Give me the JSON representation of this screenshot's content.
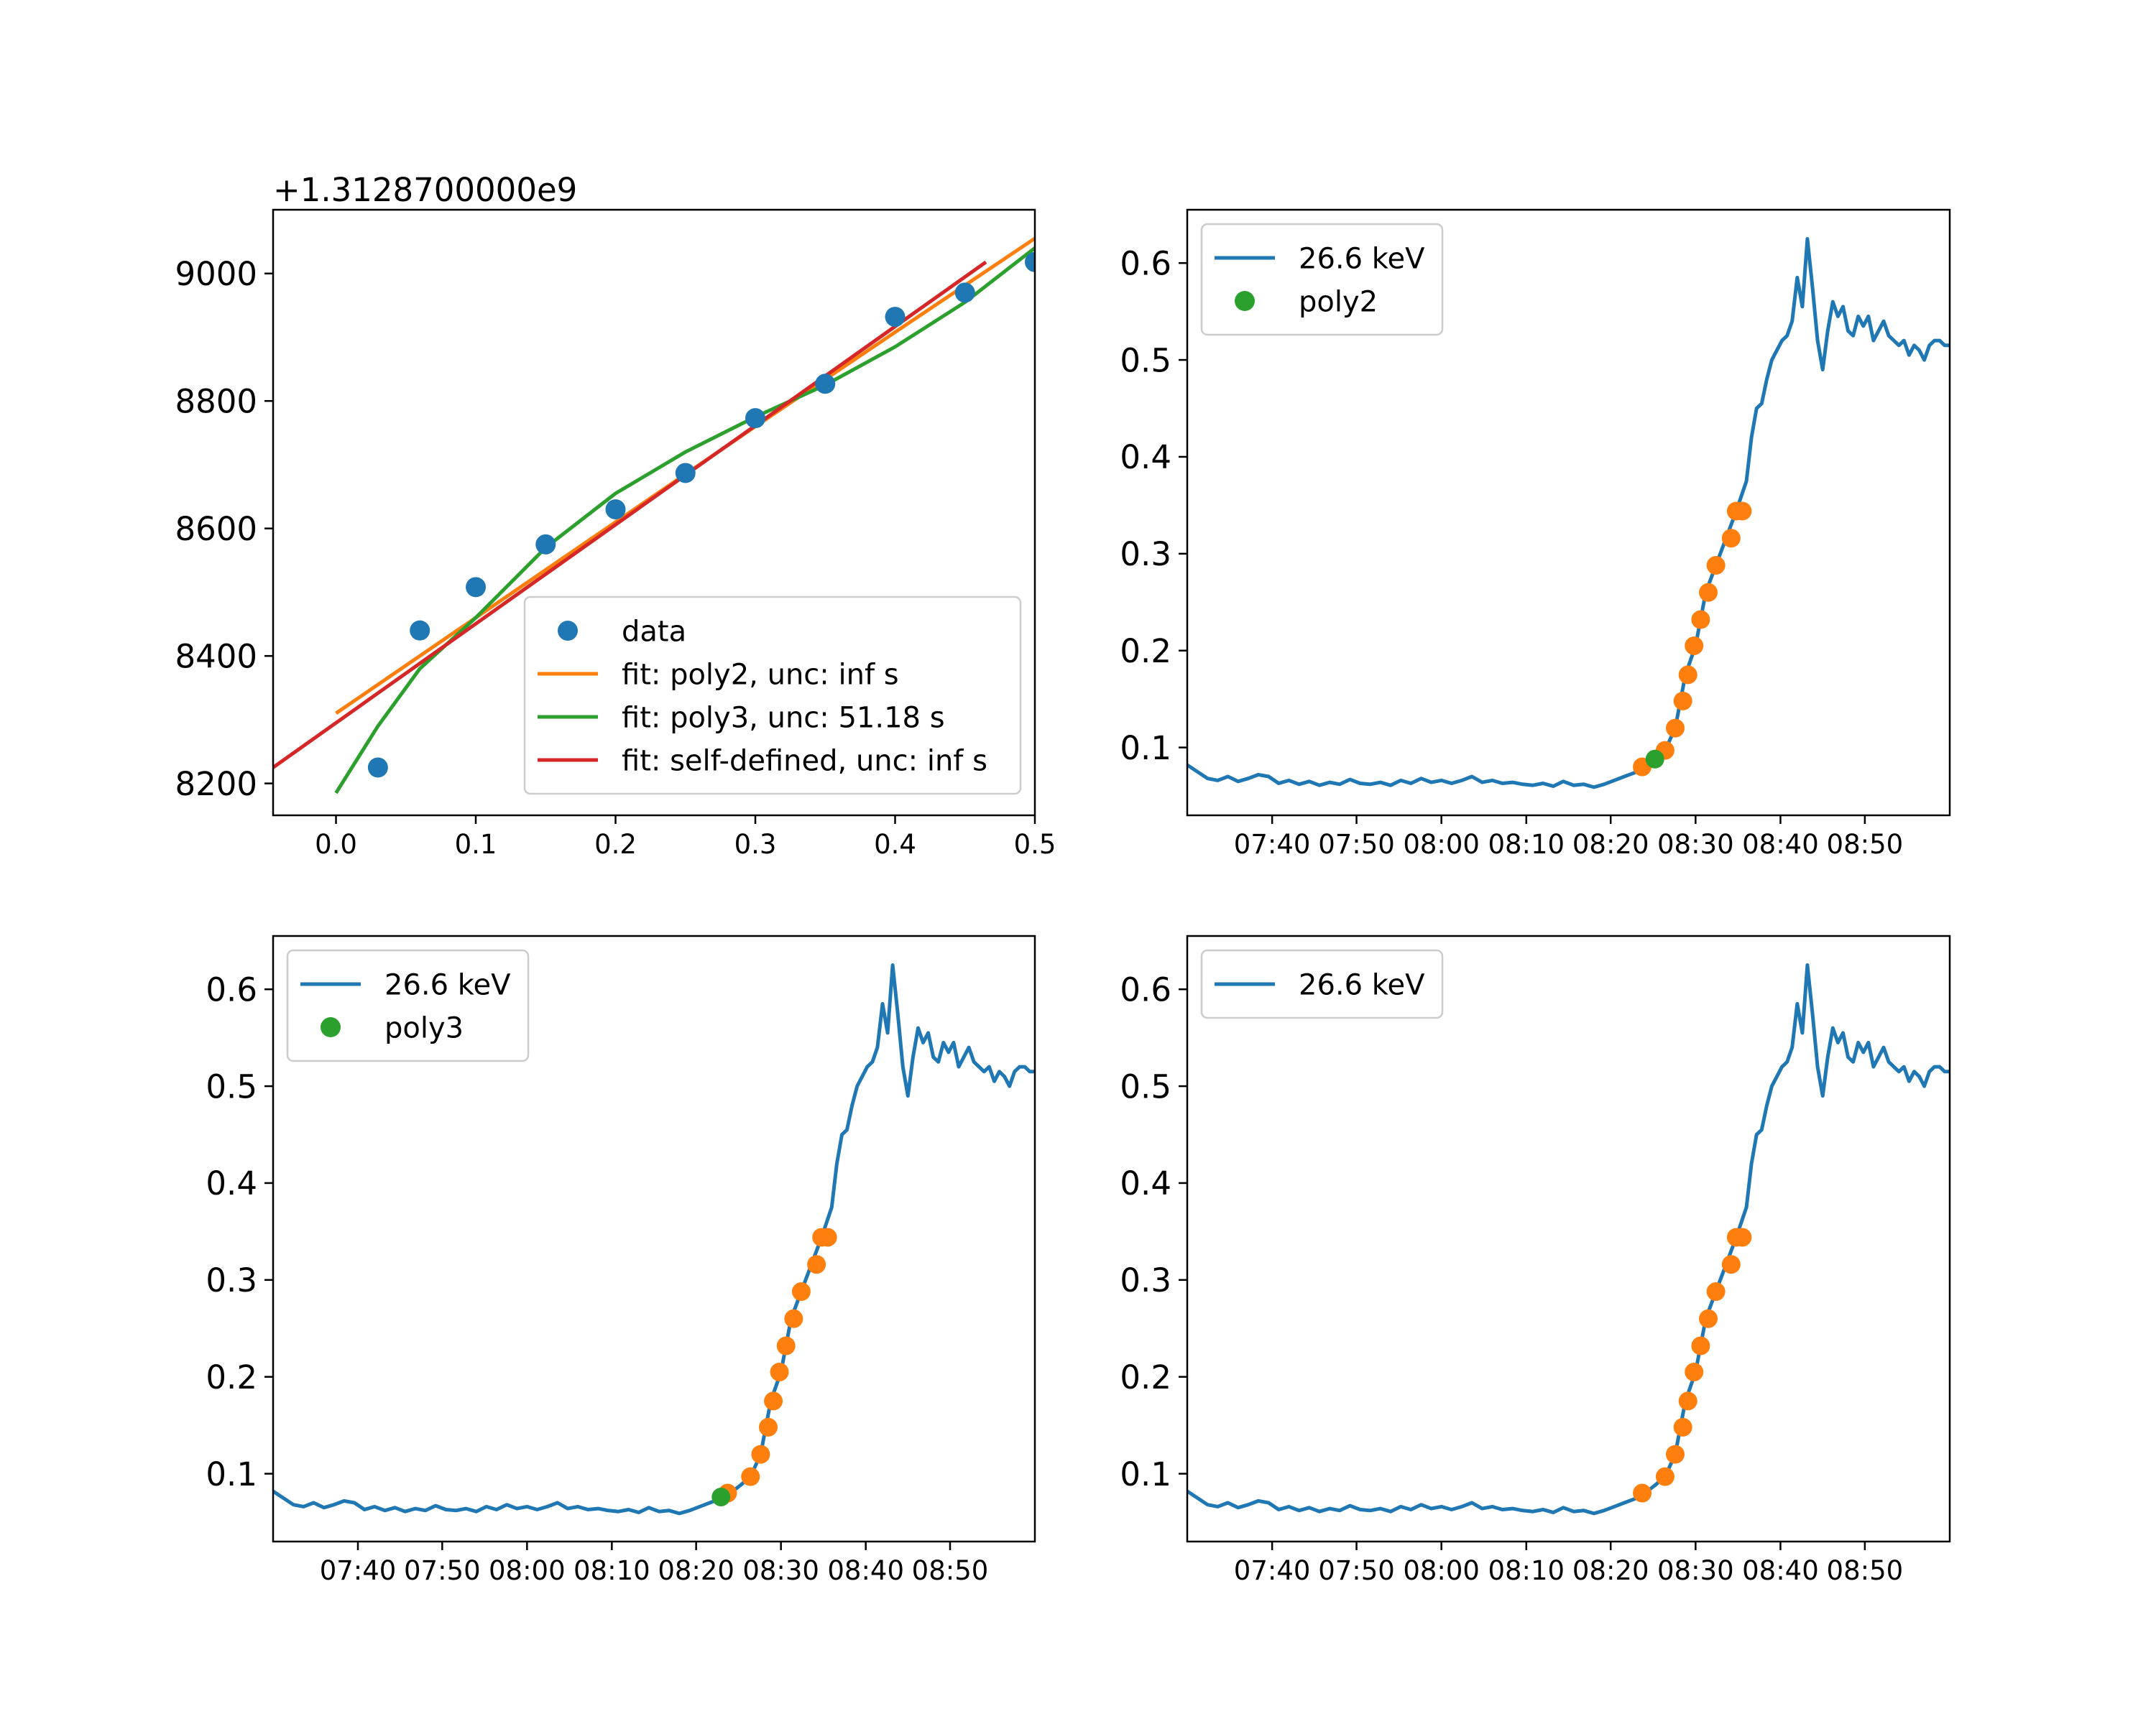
{
  "colors": {
    "blue": "#1f77b4",
    "orange": "#ff7f0e",
    "green": "#2ca02c",
    "red": "#d62728"
  },
  "chart_data": [
    {
      "type": "scatter",
      "offset_label": "+1.3128700000e9",
      "xlim": [
        -0.045,
        0.5
      ],
      "ylim": [
        8150,
        9100
      ],
      "x_ticks": [
        0.0,
        0.1,
        0.2,
        0.3,
        0.4,
        0.5
      ],
      "x_tick_labels": [
        "0.0",
        "0.1",
        "0.2",
        "0.3",
        "0.4",
        "0.5"
      ],
      "y_ticks": [
        8200,
        8400,
        8600,
        8800,
        9000
      ],
      "y_tick_labels": [
        "8200",
        "8400",
        "8600",
        "8800",
        "9000"
      ],
      "legend_position": "lower-right",
      "series": [
        {
          "name": "data",
          "kind": "points",
          "color": "#1f77b4",
          "x": [
            0.03,
            0.06,
            0.1,
            0.15,
            0.2,
            0.25,
            0.3,
            0.35,
            0.4,
            0.45,
            0.5
          ],
          "y": [
            8225,
            8440,
            8508,
            8575,
            8630,
            8687,
            8773,
            8827,
            8932,
            8970,
            9018
          ]
        },
        {
          "name": "fit: poly2, unc: inf s",
          "kind": "line",
          "color": "#ff7f0e",
          "x": [
            0.0,
            0.1,
            0.2,
            0.3,
            0.4,
            0.5
          ],
          "y": [
            8310,
            8460,
            8610,
            8760,
            8908,
            9055
          ]
        },
        {
          "name": "fit: poly3, unc: 51.18 s",
          "kind": "line",
          "color": "#2ca02c",
          "x": [
            0.0,
            0.03,
            0.06,
            0.1,
            0.15,
            0.2,
            0.25,
            0.3,
            0.35,
            0.4,
            0.45,
            0.5
          ],
          "y": [
            8185,
            8290,
            8380,
            8460,
            8570,
            8655,
            8720,
            8775,
            8825,
            8885,
            8955,
            9040
          ]
        },
        {
          "name": "fit: self-defined, unc: inf s",
          "kind": "line",
          "color": "#d62728",
          "x": [
            -0.045,
            0.465
          ],
          "y": [
            8225,
            9018
          ]
        }
      ]
    },
    {
      "type": "line",
      "x_tick_labels": [
        "07:40",
        "07:50",
        "08:00",
        "08:10",
        "08:20",
        "08:30",
        "08:40",
        "08:50"
      ],
      "x_ticks": [
        7.667,
        7.833,
        8.0,
        8.167,
        8.333,
        8.5,
        8.667,
        8.833
      ],
      "xlim": [
        7.5,
        9.0
      ],
      "ylim": [
        0.03,
        0.655
      ],
      "y_ticks": [
        0.1,
        0.2,
        0.3,
        0.4,
        0.5,
        0.6
      ],
      "y_tick_labels": [
        "0.1",
        "0.2",
        "0.3",
        "0.4",
        "0.5",
        "0.6"
      ],
      "legend_position": "top-left",
      "legend": [
        {
          "label": "26.6 keV",
          "marker": "line",
          "color": "#1f77b4"
        },
        {
          "label": "poly2",
          "marker": "dot",
          "color": "#2ca02c"
        }
      ],
      "highlight_points": {
        "color": "#ff7f0e",
        "x": [
          8.395,
          8.44,
          8.46,
          8.475,
          8.485,
          8.497,
          8.51,
          8.525,
          8.54,
          8.57,
          8.58,
          8.592
        ],
        "y": [
          0.08,
          0.097,
          0.12,
          0.148,
          0.175,
          0.205,
          0.232,
          0.26,
          0.288,
          0.316,
          0.344,
          0.344
        ]
      },
      "marked_points": {
        "name": "poly2",
        "color": "#2ca02c",
        "x": [
          8.42
        ],
        "y": [
          0.088
        ]
      }
    },
    {
      "type": "line",
      "x_tick_labels": [
        "07:40",
        "07:50",
        "08:00",
        "08:10",
        "08:20",
        "08:30",
        "08:40",
        "08:50"
      ],
      "x_ticks": [
        7.667,
        7.833,
        8.0,
        8.167,
        8.333,
        8.5,
        8.667,
        8.833
      ],
      "xlim": [
        7.5,
        9.0
      ],
      "ylim": [
        0.03,
        0.655
      ],
      "y_ticks": [
        0.1,
        0.2,
        0.3,
        0.4,
        0.5,
        0.6
      ],
      "y_tick_labels": [
        "0.1",
        "0.2",
        "0.3",
        "0.4",
        "0.5",
        "0.6"
      ],
      "legend_position": "top-left",
      "legend": [
        {
          "label": "26.6 keV",
          "marker": "line",
          "color": "#1f77b4"
        },
        {
          "label": "poly3",
          "marker": "dot",
          "color": "#2ca02c"
        }
      ],
      "highlight_points": {
        "color": "#ff7f0e",
        "x": [
          8.395,
          8.44,
          8.46,
          8.475,
          8.485,
          8.497,
          8.51,
          8.525,
          8.54,
          8.57,
          8.58,
          8.592
        ],
        "y": [
          0.08,
          0.097,
          0.12,
          0.148,
          0.175,
          0.205,
          0.232,
          0.26,
          0.288,
          0.316,
          0.344,
          0.344
        ]
      },
      "marked_points": {
        "name": "poly3",
        "color": "#2ca02c",
        "x": [
          8.382
        ],
        "y": [
          0.076
        ]
      }
    },
    {
      "type": "line",
      "x_tick_labels": [
        "07:40",
        "07:50",
        "08:00",
        "08:10",
        "08:20",
        "08:30",
        "08:40",
        "08:50"
      ],
      "x_ticks": [
        7.667,
        7.833,
        8.0,
        8.167,
        8.333,
        8.5,
        8.667,
        8.833
      ],
      "xlim": [
        7.5,
        9.0
      ],
      "ylim": [
        0.03,
        0.655
      ],
      "y_ticks": [
        0.1,
        0.2,
        0.3,
        0.4,
        0.5,
        0.6
      ],
      "y_tick_labels": [
        "0.1",
        "0.2",
        "0.3",
        "0.4",
        "0.5",
        "0.6"
      ],
      "legend_position": "top-left",
      "legend": [
        {
          "label": "26.6 keV",
          "marker": "line",
          "color": "#1f77b4"
        }
      ],
      "highlight_points": {
        "color": "#ff7f0e",
        "x": [
          8.395,
          8.44,
          8.46,
          8.475,
          8.485,
          8.497,
          8.51,
          8.525,
          8.54,
          8.57,
          8.58,
          8.592
        ],
        "y": [
          0.08,
          0.097,
          0.12,
          0.148,
          0.175,
          0.205,
          0.232,
          0.26,
          0.288,
          0.316,
          0.344,
          0.344
        ]
      },
      "marked_points": null
    }
  ],
  "shared_series": {
    "name": "26.6 keV",
    "color": "#1f77b4",
    "x": [
      7.5,
      7.52,
      7.54,
      7.56,
      7.58,
      7.6,
      7.62,
      7.64,
      7.66,
      7.68,
      7.7,
      7.72,
      7.74,
      7.76,
      7.78,
      7.8,
      7.82,
      7.84,
      7.86,
      7.88,
      7.9,
      7.92,
      7.94,
      7.96,
      7.98,
      8.0,
      8.02,
      8.04,
      8.06,
      8.08,
      8.1,
      8.12,
      8.14,
      8.16,
      8.18,
      8.2,
      8.22,
      8.24,
      8.26,
      8.28,
      8.3,
      8.32,
      8.34,
      8.36,
      8.38,
      8.4,
      8.42,
      8.44,
      8.46,
      8.48,
      8.5,
      8.52,
      8.54,
      8.56,
      8.58,
      8.6,
      8.61,
      8.62,
      8.63,
      8.64,
      8.65,
      8.66,
      8.67,
      8.68,
      8.69,
      8.7,
      8.71,
      8.72,
      8.73,
      8.74,
      8.75,
      8.76,
      8.77,
      8.78,
      8.79,
      8.8,
      8.81,
      8.82,
      8.83,
      8.84,
      8.85,
      8.86,
      8.87,
      8.88,
      8.89,
      8.9,
      8.91,
      8.92,
      8.93,
      8.94,
      8.95,
      8.96,
      8.97,
      8.98,
      8.99,
      9.0
    ],
    "y": [
      0.082,
      0.075,
      0.068,
      0.066,
      0.07,
      0.065,
      0.068,
      0.072,
      0.07,
      0.063,
      0.066,
      0.062,
      0.065,
      0.061,
      0.064,
      0.062,
      0.067,
      0.063,
      0.062,
      0.064,
      0.061,
      0.066,
      0.063,
      0.068,
      0.064,
      0.066,
      0.063,
      0.066,
      0.07,
      0.064,
      0.066,
      0.063,
      0.064,
      0.062,
      0.061,
      0.063,
      0.06,
      0.065,
      0.061,
      0.062,
      0.059,
      0.062,
      0.066,
      0.07,
      0.074,
      0.08,
      0.088,
      0.097,
      0.12,
      0.175,
      0.205,
      0.26,
      0.288,
      0.316,
      0.344,
      0.375,
      0.42,
      0.45,
      0.455,
      0.48,
      0.5,
      0.51,
      0.52,
      0.525,
      0.54,
      0.585,
      0.555,
      0.625,
      0.575,
      0.52,
      0.49,
      0.53,
      0.56,
      0.545,
      0.555,
      0.53,
      0.525,
      0.545,
      0.535,
      0.545,
      0.52,
      0.53,
      0.54,
      0.525,
      0.52,
      0.515,
      0.52,
      0.505,
      0.515,
      0.51,
      0.5,
      0.515,
      0.52,
      0.52,
      0.515,
      0.515
    ]
  }
}
